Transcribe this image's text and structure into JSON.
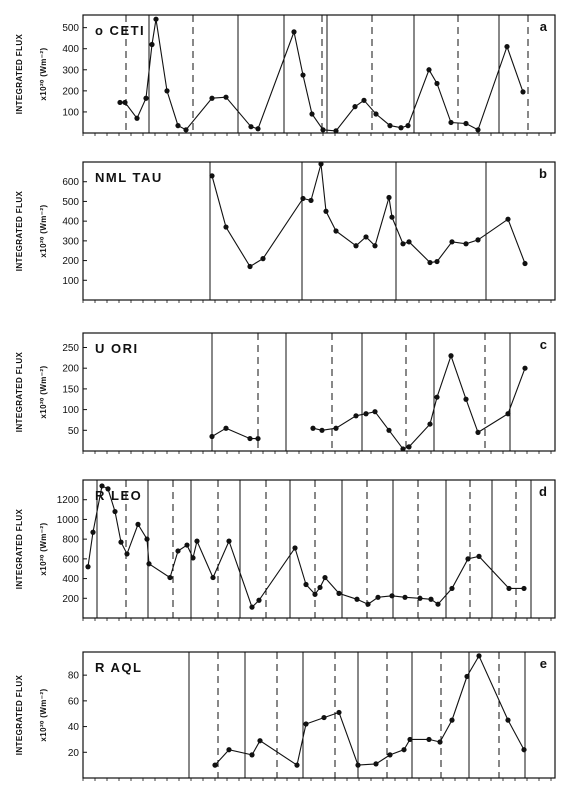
{
  "chart_data": [
    {
      "type": "line",
      "panel_letter": "a",
      "star_name": "o CETI",
      "ylabel": "INTEGRATED FLUX",
      "yunit": "x10²⁰ (Wm⁻²)",
      "yticks": [
        100,
        200,
        300,
        400,
        500
      ],
      "ylim": [
        0,
        560
      ],
      "solid_dividers_x": [
        149,
        238,
        284,
        327,
        414,
        499
      ],
      "dashed_dividers_x": [
        126,
        193,
        322,
        372,
        458,
        528
      ],
      "points": [
        [
          120,
          145
        ],
        [
          125,
          145
        ],
        [
          137,
          70
        ],
        [
          146,
          165
        ],
        [
          152,
          420
        ],
        [
          156,
          540
        ],
        [
          167,
          200
        ],
        [
          178,
          35
        ],
        [
          186,
          15
        ],
        [
          212,
          165
        ],
        [
          226,
          170
        ],
        [
          251,
          30
        ],
        [
          258,
          20
        ],
        [
          294,
          480
        ],
        [
          303,
          275
        ],
        [
          312,
          90
        ],
        [
          323,
          15
        ],
        [
          336,
          10
        ],
        [
          355,
          125
        ],
        [
          364,
          155
        ],
        [
          376,
          90
        ],
        [
          390,
          35
        ],
        [
          401,
          25
        ],
        [
          408,
          35
        ],
        [
          429,
          300
        ],
        [
          437,
          235
        ],
        [
          451,
          50
        ],
        [
          466,
          45
        ],
        [
          478,
          15
        ],
        [
          507,
          410
        ],
        [
          523,
          195
        ]
      ]
    },
    {
      "type": "line",
      "panel_letter": "b",
      "star_name": "NML TAU",
      "ylabel": "INTEGRATED FLUX",
      "yunit": "x10²⁰ (Wm⁻²)",
      "yticks": [
        100,
        200,
        300,
        400,
        500,
        600
      ],
      "ylim": [
        0,
        700
      ],
      "solid_dividers_x": [
        210,
        302,
        396,
        486
      ],
      "dashed_dividers_x": [],
      "points": [
        [
          212,
          630
        ],
        [
          226,
          370
        ],
        [
          250,
          170
        ],
        [
          263,
          210
        ],
        [
          303,
          515
        ],
        [
          311,
          505
        ],
        [
          321,
          690
        ],
        [
          326,
          450
        ],
        [
          336,
          350
        ],
        [
          356,
          275
        ],
        [
          366,
          320
        ],
        [
          375,
          275
        ],
        [
          389,
          520
        ],
        [
          392,
          420
        ],
        [
          403,
          285
        ],
        [
          409,
          295
        ],
        [
          430,
          190
        ],
        [
          437,
          195
        ],
        [
          452,
          295
        ],
        [
          466,
          285
        ],
        [
          478,
          305
        ],
        [
          508,
          410
        ],
        [
          525,
          185
        ]
      ]
    },
    {
      "type": "line",
      "panel_letter": "c",
      "star_name": "U ORI",
      "ylabel": "INTEGRATED FLUX",
      "yunit": "x10²⁰ (Wm⁻²)",
      "yticks": [
        50,
        100,
        150,
        200,
        250
      ],
      "ylim": [
        0,
        285
      ],
      "solid_dividers_x": [
        212,
        286,
        362,
        434,
        510
      ],
      "dashed_dividers_x": [
        258,
        332,
        406,
        485
      ],
      "segments": [
        [
          [
            212,
            35
          ],
          [
            226,
            55
          ],
          [
            250,
            30
          ],
          [
            258,
            30
          ]
        ],
        [
          [
            313,
            55
          ],
          [
            322,
            50
          ],
          [
            336,
            55
          ],
          [
            356,
            85
          ],
          [
            366,
            90
          ],
          [
            375,
            95
          ],
          [
            389,
            50
          ],
          [
            403,
            5
          ],
          [
            409,
            10
          ],
          [
            430,
            65
          ],
          [
            437,
            130
          ],
          [
            451,
            230
          ],
          [
            466,
            125
          ],
          [
            478,
            45
          ],
          [
            508,
            90
          ],
          [
            525,
            200
          ]
        ]
      ]
    },
    {
      "type": "line",
      "panel_letter": "d",
      "star_name": "R LEO",
      "ylabel": "INTEGRATED FLUX",
      "yunit": "x10²⁰ (Wm⁻²)",
      "yticks": [
        200,
        400,
        600,
        800,
        1000,
        1200
      ],
      "ylim": [
        0,
        1400
      ],
      "solid_dividers_x": [
        97,
        148,
        191,
        240,
        290,
        342,
        393,
        446,
        492,
        531
      ],
      "dashed_dividers_x": [
        126,
        173,
        218,
        266,
        315,
        367,
        418,
        470,
        516
      ],
      "points": [
        [
          88,
          520
        ],
        [
          93,
          870
        ],
        [
          102,
          1340
        ],
        [
          108,
          1310
        ],
        [
          115,
          1080
        ],
        [
          121,
          770
        ],
        [
          127,
          650
        ],
        [
          138,
          950
        ],
        [
          147,
          800
        ],
        [
          149,
          550
        ],
        [
          170,
          410
        ],
        [
          178,
          680
        ],
        [
          187,
          740
        ],
        [
          193,
          610
        ],
        [
          197,
          780
        ],
        [
          213,
          410
        ],
        [
          229,
          780
        ],
        [
          252,
          110
        ],
        [
          259,
          180
        ],
        [
          295,
          710
        ],
        [
          306,
          340
        ],
        [
          315,
          240
        ],
        [
          320,
          310
        ],
        [
          325,
          410
        ],
        [
          339,
          250
        ],
        [
          357,
          190
        ],
        [
          368,
          140
        ],
        [
          378,
          210
        ],
        [
          392,
          225
        ],
        [
          405,
          210
        ],
        [
          420,
          200
        ],
        [
          431,
          190
        ],
        [
          438,
          140
        ],
        [
          452,
          300
        ],
        [
          468,
          600
        ],
        [
          479,
          625
        ],
        [
          509,
          300
        ],
        [
          524,
          300
        ]
      ]
    },
    {
      "type": "line",
      "panel_letter": "e",
      "star_name": "R AQL",
      "ylabel": "INTEGRATED FLUX",
      "yunit": "x10²⁰ (Wm⁻²)",
      "yticks": [
        20,
        40,
        60,
        80
      ],
      "ylim": [
        0,
        98
      ],
      "solid_dividers_x": [
        189,
        245,
        303,
        358,
        412,
        469,
        525
      ],
      "dashed_dividers_x": [
        218,
        277,
        335,
        387,
        441,
        499
      ],
      "points": [
        [
          215,
          10
        ],
        [
          229,
          22
        ],
        [
          252,
          18
        ],
        [
          260,
          29
        ],
        [
          297,
          10
        ],
        [
          306,
          42
        ],
        [
          324,
          47
        ],
        [
          339,
          51
        ],
        [
          358,
          10
        ],
        [
          376,
          11
        ],
        [
          390,
          18
        ],
        [
          404,
          22
        ],
        [
          410,
          30
        ],
        [
          429,
          30
        ],
        [
          440,
          28
        ],
        [
          452,
          45
        ],
        [
          467,
          79
        ],
        [
          479,
          95
        ],
        [
          508,
          45
        ],
        [
          524,
          22
        ]
      ]
    }
  ]
}
